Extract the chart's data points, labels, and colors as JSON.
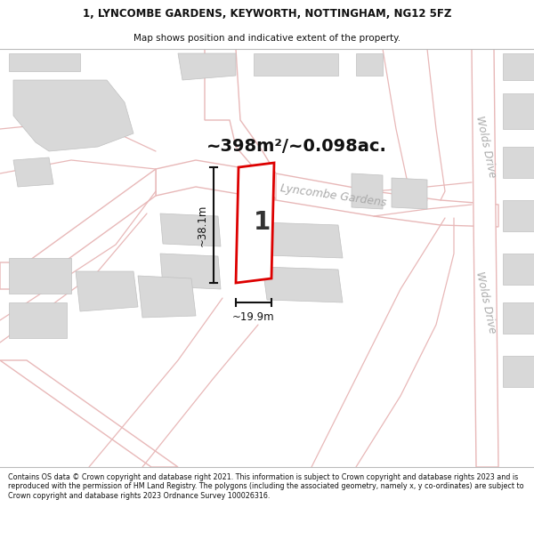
{
  "title": "1, LYNCOMBE GARDENS, KEYWORTH, NOTTINGHAM, NG12 5FZ",
  "subtitle": "Map shows position and indicative extent of the property.",
  "area_text": "~398m²/~0.098ac.",
  "dim_width": "~19.9m",
  "dim_height": "~38.1m",
  "plot_number": "1",
  "road_label1": "Lyncombe Gardens",
  "road_label2": "Wolds Drive",
  "footer": "Contains OS data © Crown copyright and database right 2021. This information is subject to Crown copyright and database rights 2023 and is reproduced with the permission of HM Land Registry. The polygons (including the associated geometry, namely x, y co-ordinates) are subject to Crown copyright and database rights 2023 Ordnance Survey 100026316.",
  "bg_color": "#f5f2ef",
  "plot_fill": "#ffffff",
  "plot_edge": "#dd0000",
  "road_color": "#e8b8b8",
  "road_fill": "#ffffff",
  "building_color": "#d8d8d8",
  "building_edge": "#c0c0c0",
  "header_bg": "#ffffff",
  "footer_bg": "#ffffff",
  "dim_color": "#111111",
  "label_color": "#aaaaaa",
  "area_color": "#111111"
}
